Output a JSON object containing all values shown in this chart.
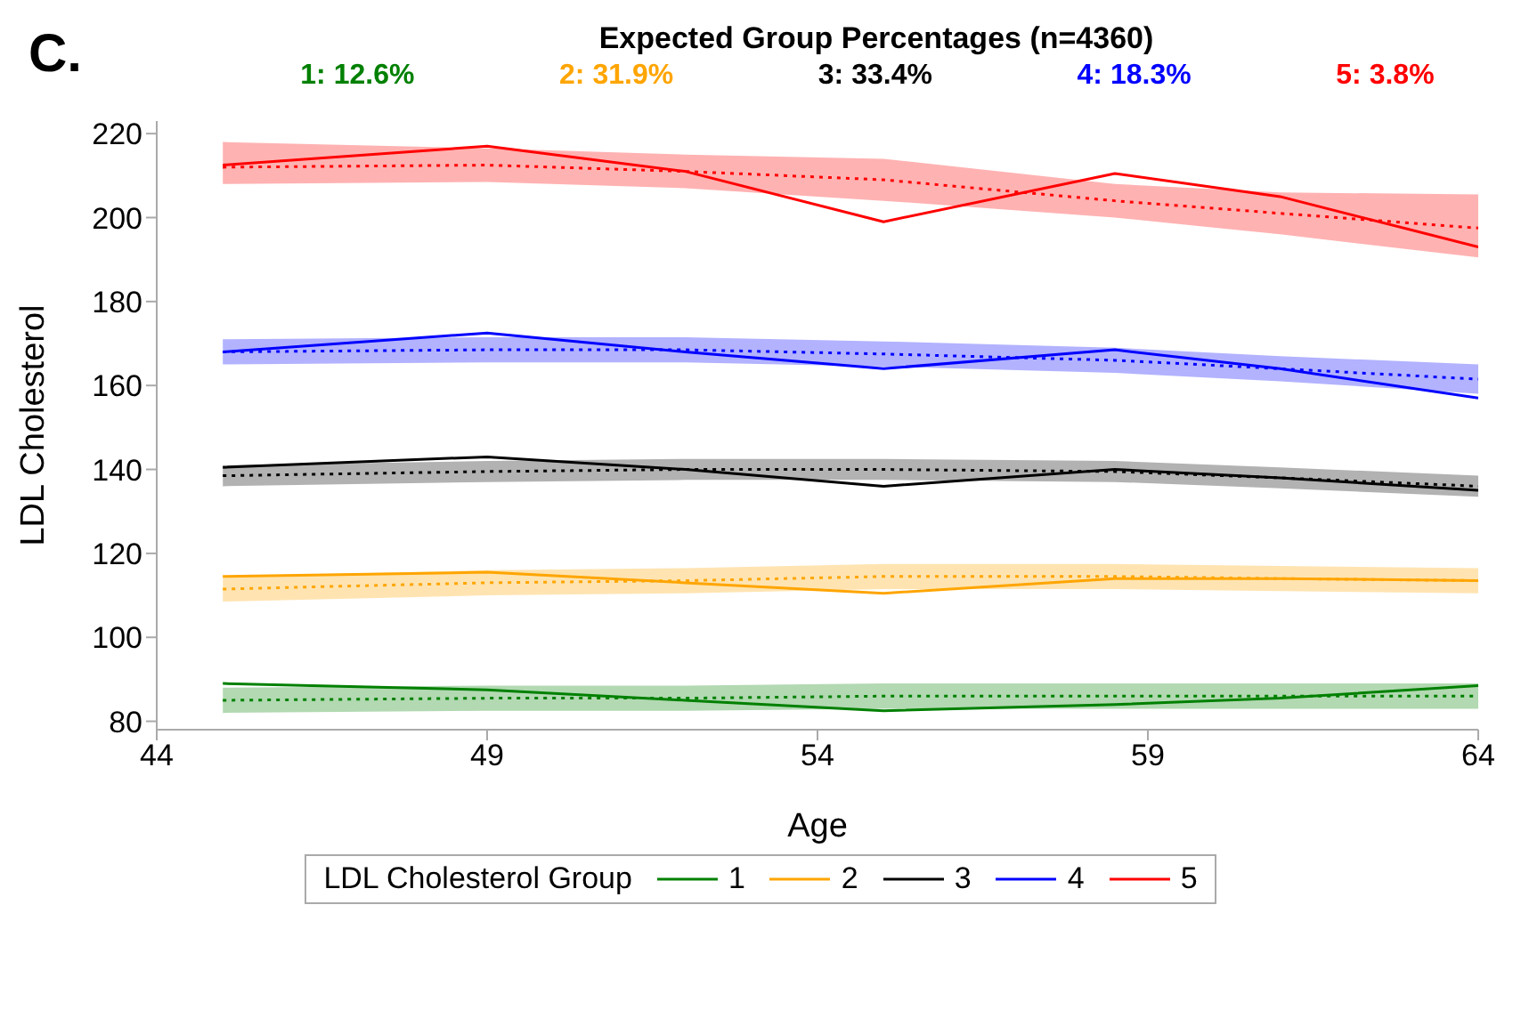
{
  "chart_data": {
    "type": "line",
    "title": "Expected Group Percentages (n=4360)",
    "annotations": [
      "C.",
      "1: 12.6%",
      "2: 31.9%",
      "3: 33.4%",
      "4: 18.3%",
      "5: 3.8%"
    ],
    "xlabel": "Age",
    "ylabel": "LDL Cholesterol",
    "legend_title": "LDL Cholesterol Group",
    "legend": "bottom",
    "grid": false,
    "marker": "none",
    "x": [
      45,
      49,
      52,
      55,
      58.5,
      61,
      64
    ],
    "xlim": [
      44,
      64
    ],
    "xticks": [
      44,
      49,
      54,
      59,
      64
    ],
    "ylim": [
      78,
      223
    ],
    "yticks": [
      80,
      100,
      120,
      140,
      160,
      180,
      200,
      220
    ],
    "series": [
      {
        "name": "1",
        "color": "#008000",
        "line_style": "solid",
        "values": [
          89,
          87.5,
          85,
          82.5,
          84,
          85.5,
          88.5
        ]
      },
      {
        "name": "2",
        "color": "#ffa500",
        "line_style": "solid",
        "values": [
          114.5,
          115.5,
          113,
          110.5,
          114,
          114,
          113.5
        ]
      },
      {
        "name": "3",
        "color": "#000000",
        "line_style": "solid",
        "values": [
          140.5,
          143,
          140,
          136,
          140,
          138,
          135
        ]
      },
      {
        "name": "4",
        "color": "#0000ff",
        "line_style": "solid",
        "values": [
          168,
          172.5,
          168,
          164,
          168.5,
          164,
          157
        ]
      },
      {
        "name": "5",
        "color": "#ff0000",
        "line_style": "solid",
        "values": [
          212.5,
          217,
          211,
          199,
          210.5,
          205,
          193
        ]
      },
      {
        "color": "#008000",
        "line_style": "dotted",
        "values": [
          85,
          85.5,
          85.5,
          86,
          86,
          86,
          86
        ],
        "lower": [
          82,
          82.5,
          82.5,
          83,
          83,
          83,
          83
        ],
        "upper": [
          88,
          88.5,
          88.5,
          89,
          89,
          89,
          89
        ]
      },
      {
        "color": "#ffa500",
        "line_style": "dotted",
        "values": [
          111.5,
          113,
          113.5,
          114.5,
          114.5,
          114,
          113.5
        ],
        "lower": [
          108.5,
          110,
          110.5,
          111.5,
          111.5,
          111,
          110.5
        ],
        "upper": [
          114.5,
          116,
          116.5,
          117.5,
          117.5,
          117,
          116.5
        ]
      },
      {
        "color": "#000000",
        "line_style": "dotted",
        "values": [
          138.5,
          139.5,
          140,
          140,
          139.5,
          138,
          136
        ],
        "lower": [
          136,
          137,
          137.5,
          137.5,
          137,
          135.5,
          133.5
        ],
        "upper": [
          141,
          142,
          142.5,
          142.5,
          142,
          140.5,
          138.5
        ]
      },
      {
        "color": "#0000ff",
        "line_style": "dotted",
        "values": [
          168,
          168.5,
          168.5,
          167.5,
          166,
          164,
          161.5
        ],
        "lower": [
          165,
          165.5,
          165.5,
          164.5,
          163,
          161,
          158
        ],
        "upper": [
          171,
          171.5,
          171.5,
          170.5,
          169,
          167,
          165
        ]
      },
      {
        "color": "#ff0000",
        "line_style": "dotted",
        "values": [
          212,
          212.5,
          211,
          209,
          204,
          201,
          197.5
        ],
        "lower": [
          208,
          208.5,
          207,
          204,
          200,
          196,
          190.5
        ],
        "upper": [
          218,
          216.5,
          215,
          214,
          208,
          206,
          205.5
        ]
      }
    ]
  }
}
